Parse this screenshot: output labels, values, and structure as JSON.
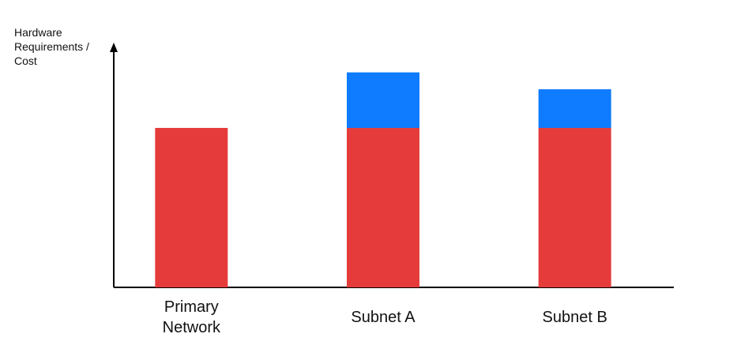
{
  "chart_data": {
    "type": "stacked-bar",
    "y_axis_label": "Hardware Requirements / Cost",
    "categories": [
      "Primary Network",
      "Subnet A",
      "Subnet B"
    ],
    "series": [
      {
        "color": "#e53b3b",
        "values": [
          66,
          66,
          66
        ]
      },
      {
        "color": "#0f7bff",
        "values": [
          0,
          23,
          16
        ]
      }
    ],
    "ylim": [
      0,
      100
    ]
  }
}
